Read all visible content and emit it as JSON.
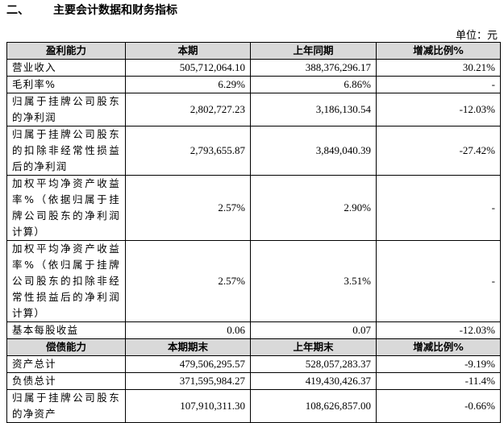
{
  "heading": {
    "number": "二、",
    "title": "主要会计数据和财务指标"
  },
  "unit": "单位：元",
  "table": {
    "sections": [
      {
        "header": [
          "盈利能力",
          "本期",
          "上年同期",
          "增减比例%"
        ],
        "rows": [
          [
            "营业收入",
            "505,712,064.10",
            "388,376,296.17",
            "30.21%"
          ],
          [
            "毛利率%",
            "6.29%",
            "6.86%",
            "-"
          ],
          [
            "归属于挂牌公司股东的净利润",
            "2,802,727.23",
            "3,186,130.54",
            "-12.03%"
          ],
          [
            "归属于挂牌公司股东的扣除非经常性损益后的净利润",
            "2,793,655.87",
            "3,849,040.39",
            "-27.42%"
          ],
          [
            "加权平均净资产收益率%（依据归属于挂牌公司股东的净利润计算）",
            "2.57%",
            "2.90%",
            "-"
          ],
          [
            "加权平均净资产收益率%（依归属于挂牌公司股东的扣除非经常性损益后的净利润计算）",
            "2.57%",
            "3.51%",
            "-"
          ],
          [
            "基本每股收益",
            "0.06",
            "0.07",
            "-12.03%"
          ]
        ]
      },
      {
        "header": [
          "偿债能力",
          "本期期末",
          "上年期末",
          "增减比例%"
        ],
        "rows": [
          [
            "资产总计",
            "479,506,295.57",
            "528,057,283.37",
            "-9.19%"
          ],
          [
            "负债总计",
            "371,595,984.27",
            "419,430,426.37",
            "-11.4%"
          ],
          [
            "归属于挂牌公司股东的净资产",
            "107,910,311.30",
            "108,626,857.00",
            "-0.66%"
          ]
        ]
      }
    ]
  }
}
